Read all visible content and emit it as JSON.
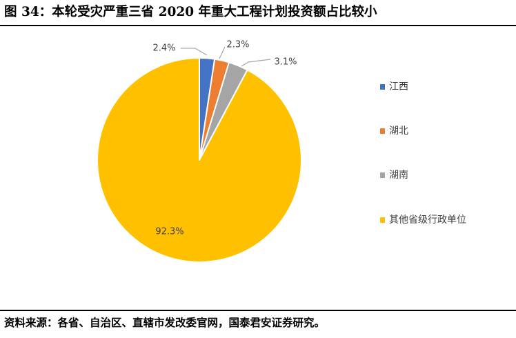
{
  "figure": {
    "title": "图 34：本轮受灾严重三省 2020 年重大工程计划投资额占比较小",
    "source": "资料来源：各省、自治区、直辖市发改委官网，国泰君安证券研究。"
  },
  "chart_data": {
    "type": "pie",
    "title": "",
    "categories": [
      "江西",
      "湖北",
      "湖南",
      "其他省级行政单位"
    ],
    "values": [
      2.4,
      2.3,
      3.1,
      92.3
    ],
    "labels": [
      "2.4%",
      "2.3%",
      "3.1%",
      "92.3%"
    ],
    "colors": [
      "#4472C4",
      "#ED7D31",
      "#A5A5A5",
      "#FFC000"
    ],
    "start_angle": "12 o'clock",
    "direction": "clockwise",
    "legend": {
      "position": "right",
      "entries": [
        "江西",
        "湖北",
        "湖南",
        "其他省级行政单位"
      ]
    }
  }
}
